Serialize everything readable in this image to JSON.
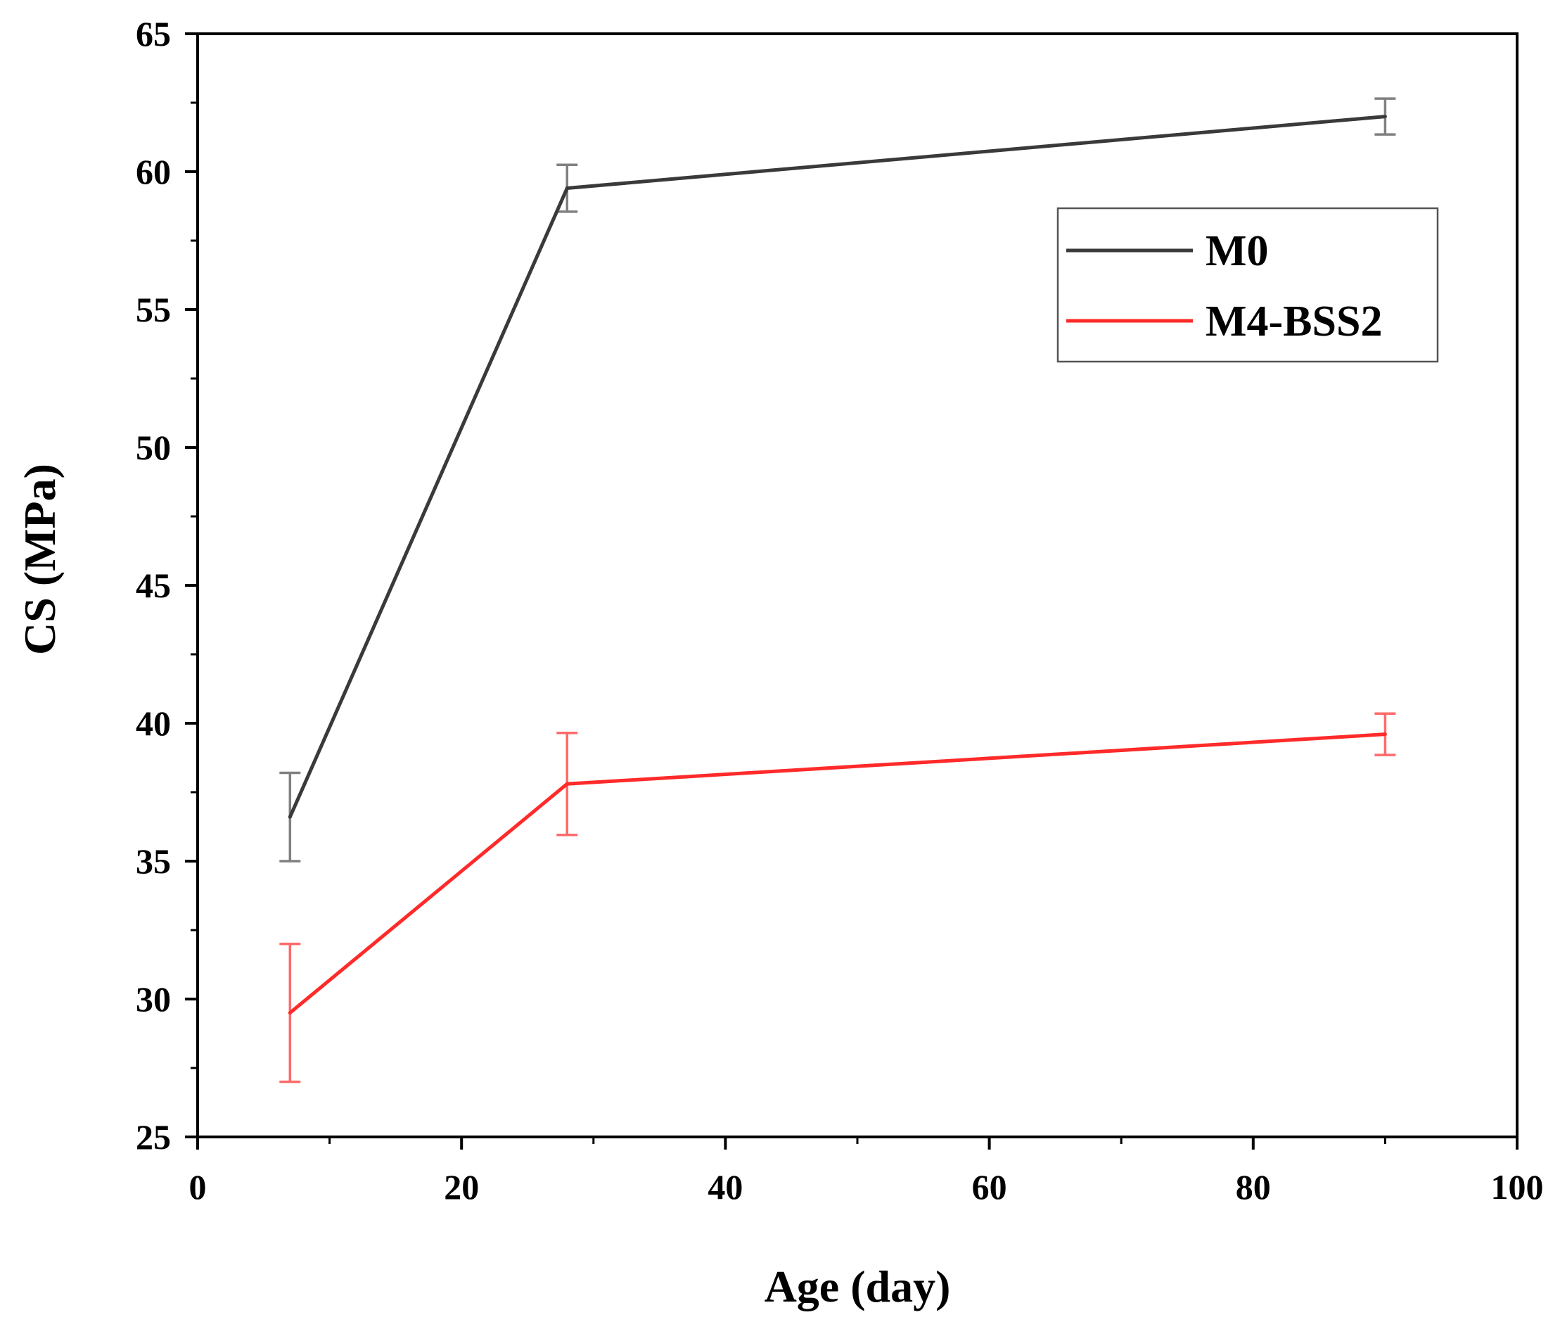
{
  "chart_data": {
    "type": "line",
    "title": "",
    "xlabel": "Age (day)",
    "ylabel": "CS (MPa)",
    "xlim": [
      0,
      100
    ],
    "ylim": [
      25,
      65
    ],
    "xticks": [
      0,
      20,
      40,
      60,
      80,
      100
    ],
    "yticks": [
      25,
      30,
      35,
      40,
      45,
      50,
      55,
      60,
      65
    ],
    "grid": false,
    "legend_position": "top-right",
    "series": [
      {
        "name": "M0",
        "color": "#3a3a3a",
        "error_color": "#808080",
        "x": [
          7,
          28,
          90
        ],
        "y": [
          36.6,
          59.4,
          62.0
        ],
        "error": [
          1.6,
          0.85,
          0.65
        ]
      },
      {
        "name": "M4-BSS2",
        "color": "#ff2a2a",
        "error_color": "#ff6a6a",
        "x": [
          7,
          28,
          90
        ],
        "y": [
          29.5,
          37.8,
          39.6
        ],
        "error": [
          2.5,
          1.85,
          0.75
        ]
      }
    ]
  }
}
